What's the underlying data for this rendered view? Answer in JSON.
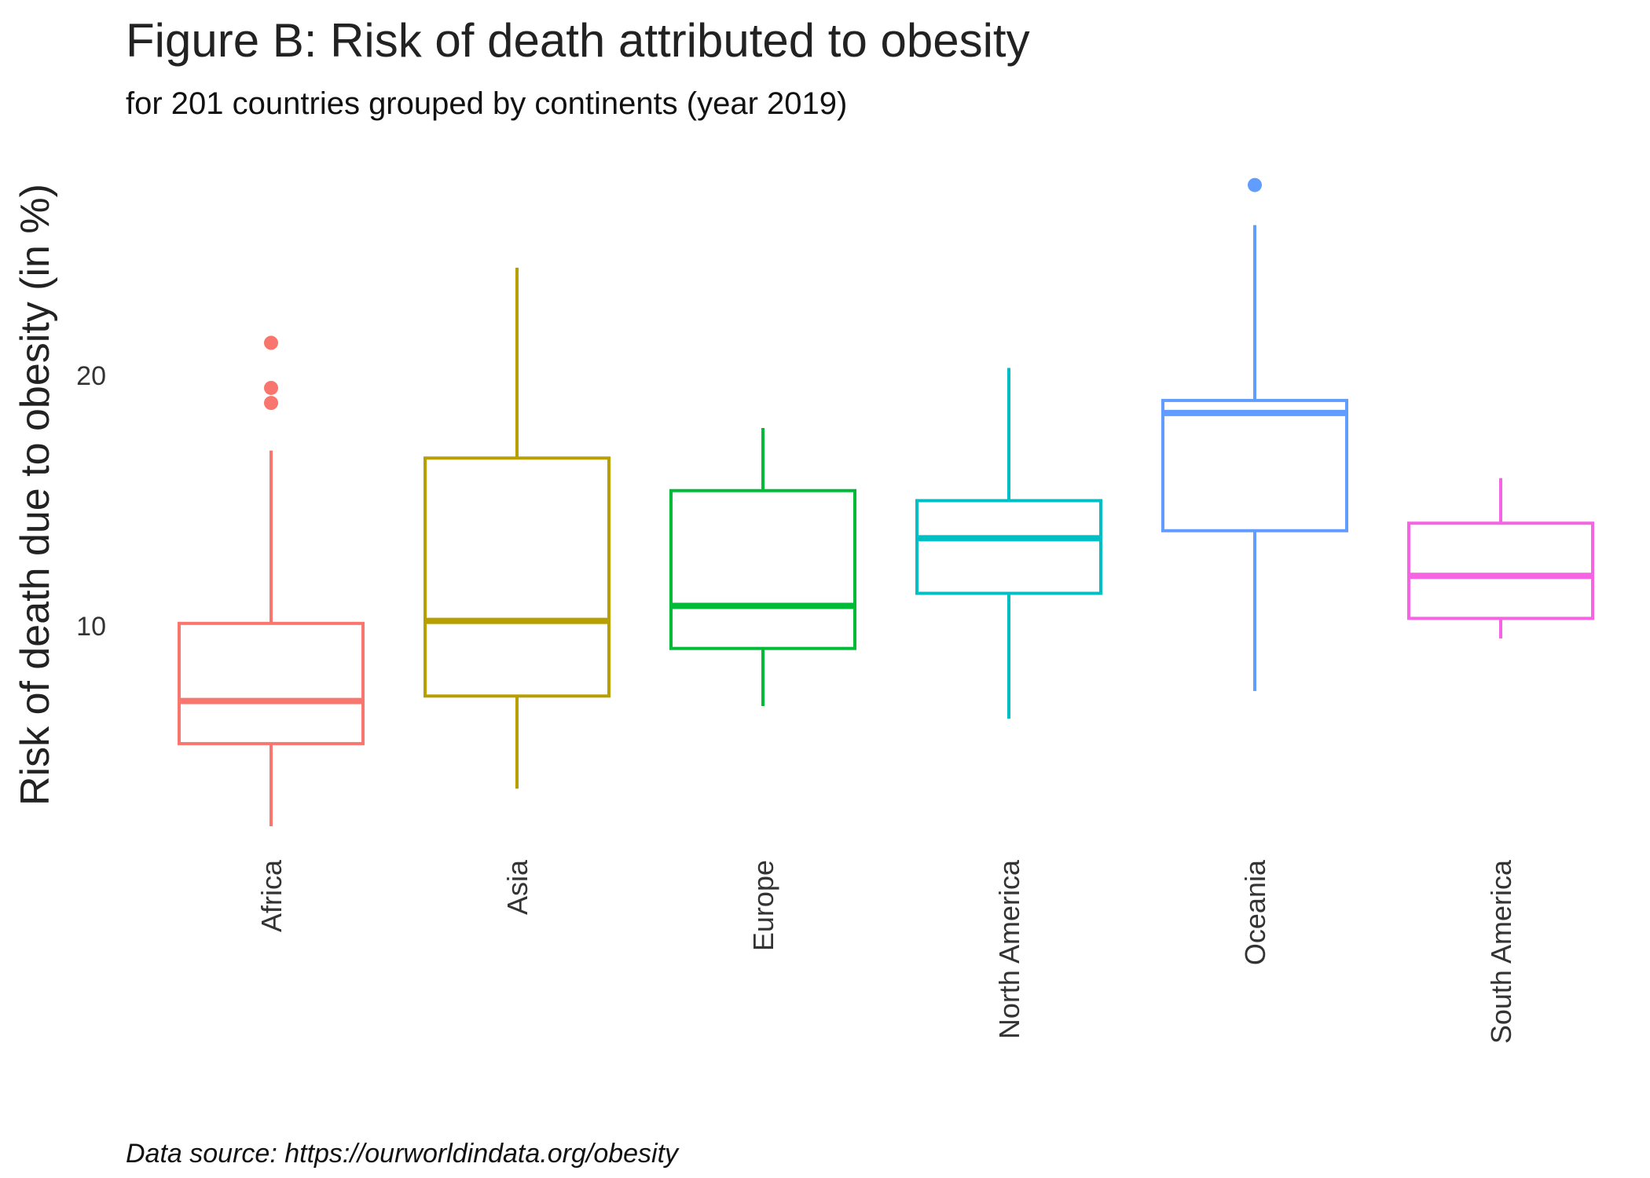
{
  "chart_data": {
    "type": "box",
    "title": "Figure B: Risk of death attributed to obesity",
    "subtitle": "for 201 countries grouped by continents (year 2019)",
    "ylabel": "Risk of death due to obesity (in %)",
    "xlabel": "",
    "caption": "Data source: https://ourworldindata.org/obesity",
    "ylim": [
      0.5,
      29.5
    ],
    "yticks": [
      10,
      20
    ],
    "grid": false,
    "legend": "none",
    "categories": [
      "Africa",
      "Asia",
      "Europe",
      "North America",
      "Oceania",
      "South America"
    ],
    "colors": [
      "#F8766D",
      "#B79F00",
      "#00BA38",
      "#00BFC4",
      "#619CFF",
      "#F564E3"
    ],
    "boxes": [
      {
        "category": "Africa",
        "whisker_low": 2.0,
        "q1": 5.3,
        "median": 7.0,
        "q3": 10.1,
        "whisker_high": 17.0,
        "outliers": [
          21.3,
          19.5,
          18.9
        ]
      },
      {
        "category": "Asia",
        "whisker_low": 3.5,
        "q1": 7.2,
        "median": 10.2,
        "q3": 16.7,
        "whisker_high": 24.3,
        "outliers": []
      },
      {
        "category": "Europe",
        "whisker_low": 6.8,
        "q1": 9.1,
        "median": 10.8,
        "q3": 15.4,
        "whisker_high": 17.9,
        "outliers": []
      },
      {
        "category": "North America",
        "whisker_low": 6.3,
        "q1": 11.3,
        "median": 13.5,
        "q3": 15.0,
        "whisker_high": 20.3,
        "outliers": []
      },
      {
        "category": "Oceania",
        "whisker_low": 7.4,
        "q1": 13.8,
        "median": 18.5,
        "q3": 19.0,
        "whisker_high": 26.0,
        "outliers": [
          27.6
        ]
      },
      {
        "category": "South America",
        "whisker_low": 9.5,
        "q1": 10.3,
        "median": 12.0,
        "q3": 14.1,
        "whisker_high": 15.9,
        "outliers": []
      }
    ]
  }
}
